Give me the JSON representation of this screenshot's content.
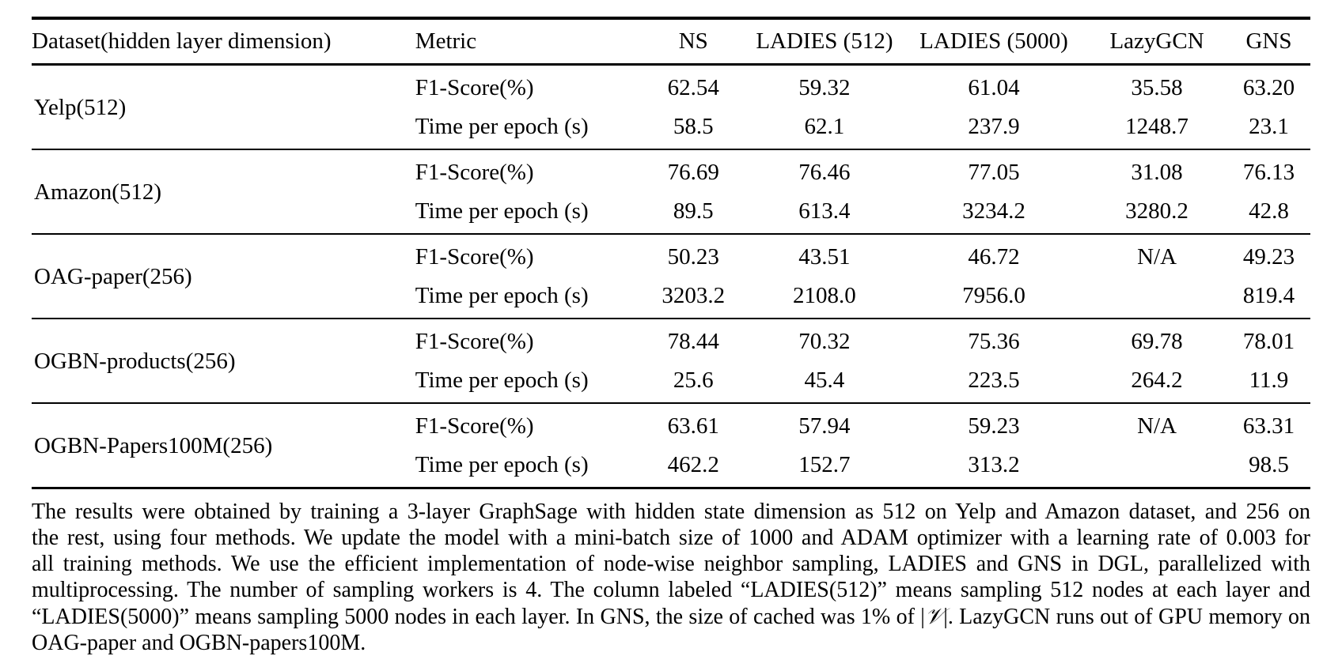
{
  "table": {
    "header": {
      "dataset": "Dataset(hidden layer dimension)",
      "metric": "Metric",
      "methods": [
        "NS",
        "LADIES (512)",
        "LADIES (5000)",
        "LazyGCN",
        "GNS"
      ]
    },
    "metric_labels": {
      "f1": "F1-Score(%)",
      "time": "Time per epoch (s)"
    },
    "groups": [
      {
        "dataset": "Yelp(512)",
        "f1": [
          "62.54",
          "59.32",
          "61.04",
          "35.58",
          "63.20"
        ],
        "time": [
          "58.5",
          "62.1",
          "237.9",
          "1248.7",
          "23.1"
        ]
      },
      {
        "dataset": "Amazon(512)",
        "f1": [
          "76.69",
          "76.46",
          "77.05",
          "31.08",
          "76.13"
        ],
        "time": [
          "89.5",
          "613.4",
          "3234.2",
          "3280.2",
          "42.8"
        ]
      },
      {
        "dataset": "OAG-paper(256)",
        "f1": [
          "50.23",
          "43.51",
          "46.72",
          "N/A",
          "49.23"
        ],
        "time": [
          "3203.2",
          "2108.0",
          "7956.0",
          "",
          "819.4"
        ]
      },
      {
        "dataset": "OGBN-products(256)",
        "f1": [
          "78.44",
          "70.32",
          "75.36",
          "69.78",
          "78.01"
        ],
        "time": [
          "25.6",
          "45.4",
          "223.5",
          "264.2",
          "11.9"
        ]
      },
      {
        "dataset": "OGBN-Papers100M(256)",
        "f1": [
          "63.61",
          "57.94",
          "59.23",
          "N/A",
          "63.31"
        ],
        "time": [
          "462.2",
          "152.7",
          "313.2",
          "",
          "98.5"
        ]
      }
    ]
  },
  "caption": {
    "line1": "The results were obtained by training a 3-layer GraphSage with hidden state dimension as 512 on Yelp and Amazon dataset, and 256 on",
    "line2": "the rest, using four methods. We update the model with a mini-batch size of 1000 and ADAM optimizer with a learning rate of 0.003 for",
    "line3": "all training methods. We use the efficient implementation of node-wise neighbor sampling, LADIES and GNS in DGL, parallelized with",
    "line4": "multiprocessing. The number of sampling workers is 4. The column labeled “LADIES(512)” means sampling 512 nodes at each layer and",
    "line5_pre": "“LADIES(5000)” means sampling 5000 nodes in each layer. In GNS, the size of cached was 1% of |",
    "line5_v": "𝒱",
    "line5_post": "|. LazyGCN runs out of GPU memory on",
    "line6": "OAG-paper and OGBN-papers100M."
  }
}
